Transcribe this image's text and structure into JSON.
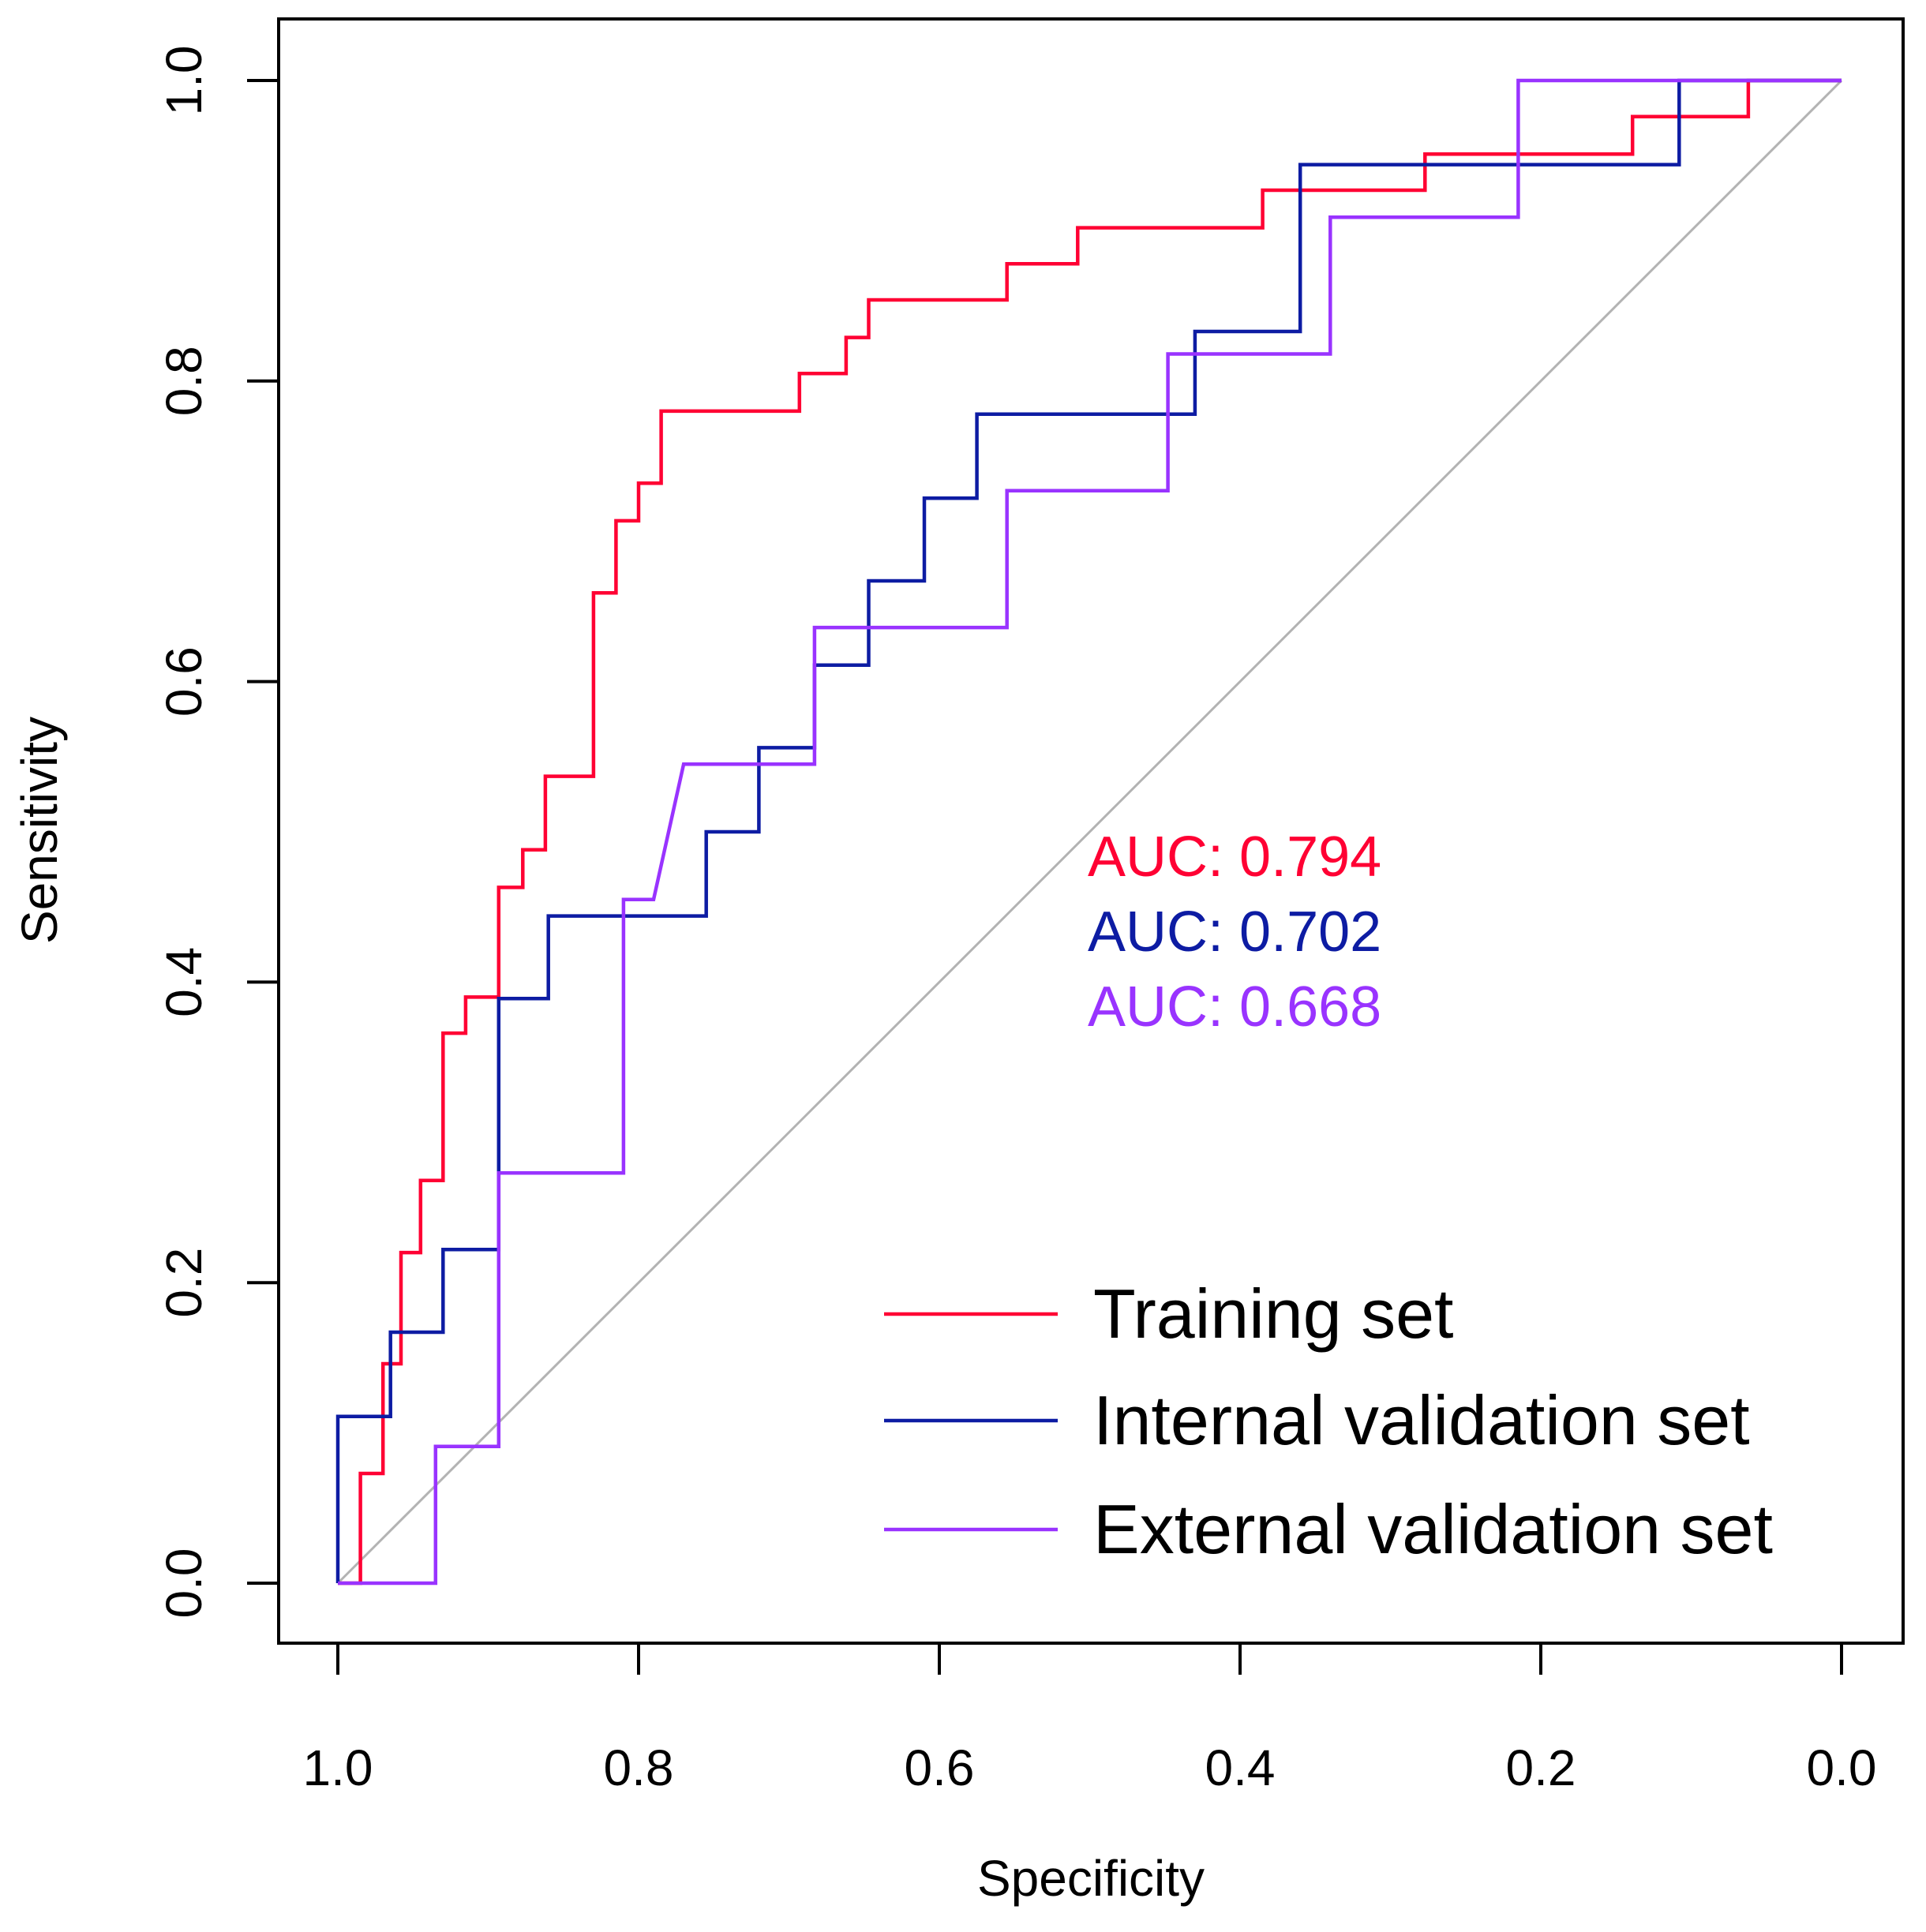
{
  "chart_data": {
    "type": "line",
    "title": "",
    "xlabel": "Specificity",
    "ylabel": "Sensitivity",
    "xlim": [
      1.0,
      0.0
    ],
    "ylim": [
      0.0,
      1.0
    ],
    "x_ticks": [
      "1.0",
      "0.8",
      "0.6",
      "0.4",
      "0.2",
      "0.0"
    ],
    "y_ticks": [
      "0.0",
      "0.2",
      "0.4",
      "0.6",
      "0.8",
      "1.0"
    ],
    "reference_line": {
      "from": [
        1.0,
        0.0
      ],
      "to": [
        0.0,
        1.0
      ],
      "color": "#b3b3b3"
    },
    "legend_position": "bottom-right",
    "series": [
      {
        "name": "Training set",
        "color": "#ff0033",
        "auc_label": "AUC: 0.794",
        "points": [
          [
            1.0,
            0.0
          ],
          [
            0.985,
            0.0
          ],
          [
            0.985,
            0.073
          ],
          [
            0.97,
            0.073
          ],
          [
            0.97,
            0.146
          ],
          [
            0.958,
            0.146
          ],
          [
            0.958,
            0.22
          ],
          [
            0.945,
            0.22
          ],
          [
            0.945,
            0.268
          ],
          [
            0.93,
            0.268
          ],
          [
            0.93,
            0.366
          ],
          [
            0.915,
            0.366
          ],
          [
            0.915,
            0.39
          ],
          [
            0.893,
            0.39
          ],
          [
            0.893,
            0.463
          ],
          [
            0.877,
            0.463
          ],
          [
            0.877,
            0.488
          ],
          [
            0.862,
            0.488
          ],
          [
            0.862,
            0.537
          ],
          [
            0.83,
            0.537
          ],
          [
            0.83,
            0.659
          ],
          [
            0.815,
            0.659
          ],
          [
            0.815,
            0.707
          ],
          [
            0.8,
            0.707
          ],
          [
            0.8,
            0.732
          ],
          [
            0.785,
            0.732
          ],
          [
            0.785,
            0.78
          ],
          [
            0.693,
            0.78
          ],
          [
            0.693,
            0.805
          ],
          [
            0.662,
            0.805
          ],
          [
            0.662,
            0.829
          ],
          [
            0.647,
            0.829
          ],
          [
            0.647,
            0.854
          ],
          [
            0.555,
            0.854
          ],
          [
            0.555,
            0.878
          ],
          [
            0.508,
            0.878
          ],
          [
            0.508,
            0.902
          ],
          [
            0.385,
            0.902
          ],
          [
            0.385,
            0.927
          ],
          [
            0.277,
            0.927
          ],
          [
            0.277,
            0.951
          ],
          [
            0.139,
            0.951
          ],
          [
            0.139,
            0.976
          ],
          [
            0.062,
            0.976
          ],
          [
            0.062,
            1.0
          ],
          [
            0.0,
            1.0
          ]
        ]
      },
      {
        "name": "Internal validation set",
        "color": "#0d1ca3",
        "auc_label": "AUC: 0.702",
        "points": [
          [
            1.0,
            0.0
          ],
          [
            1.0,
            0.111
          ],
          [
            0.965,
            0.111
          ],
          [
            0.965,
            0.167
          ],
          [
            0.93,
            0.167
          ],
          [
            0.93,
            0.222
          ],
          [
            0.893,
            0.222
          ],
          [
            0.893,
            0.389
          ],
          [
            0.86,
            0.389
          ],
          [
            0.86,
            0.444
          ],
          [
            0.755,
            0.444
          ],
          [
            0.755,
            0.5
          ],
          [
            0.72,
            0.5
          ],
          [
            0.72,
            0.556
          ],
          [
            0.683,
            0.556
          ],
          [
            0.683,
            0.611
          ],
          [
            0.647,
            0.611
          ],
          [
            0.647,
            0.667
          ],
          [
            0.61,
            0.667
          ],
          [
            0.61,
            0.722
          ],
          [
            0.575,
            0.722
          ],
          [
            0.575,
            0.778
          ],
          [
            0.43,
            0.778
          ],
          [
            0.43,
            0.833
          ],
          [
            0.36,
            0.833
          ],
          [
            0.36,
            0.944
          ],
          [
            0.108,
            0.944
          ],
          [
            0.108,
            1.0
          ],
          [
            0.0,
            1.0
          ]
        ]
      },
      {
        "name": "External validation set",
        "color": "#9933ff",
        "auc_label": "AUC: 0.668",
        "points": [
          [
            1.0,
            0.0
          ],
          [
            0.935,
            0.0
          ],
          [
            0.935,
            0.091
          ],
          [
            0.893,
            0.091
          ],
          [
            0.893,
            0.273
          ],
          [
            0.81,
            0.273
          ],
          [
            0.81,
            0.455
          ],
          [
            0.79,
            0.455
          ],
          [
            0.77,
            0.545
          ],
          [
            0.683,
            0.545
          ],
          [
            0.683,
            0.636
          ],
          [
            0.555,
            0.636
          ],
          [
            0.555,
            0.727
          ],
          [
            0.448,
            0.727
          ],
          [
            0.448,
            0.818
          ],
          [
            0.34,
            0.818
          ],
          [
            0.34,
            0.909
          ],
          [
            0.215,
            0.909
          ],
          [
            0.215,
            1.0
          ],
          [
            0.0,
            1.0
          ]
        ]
      }
    ]
  }
}
